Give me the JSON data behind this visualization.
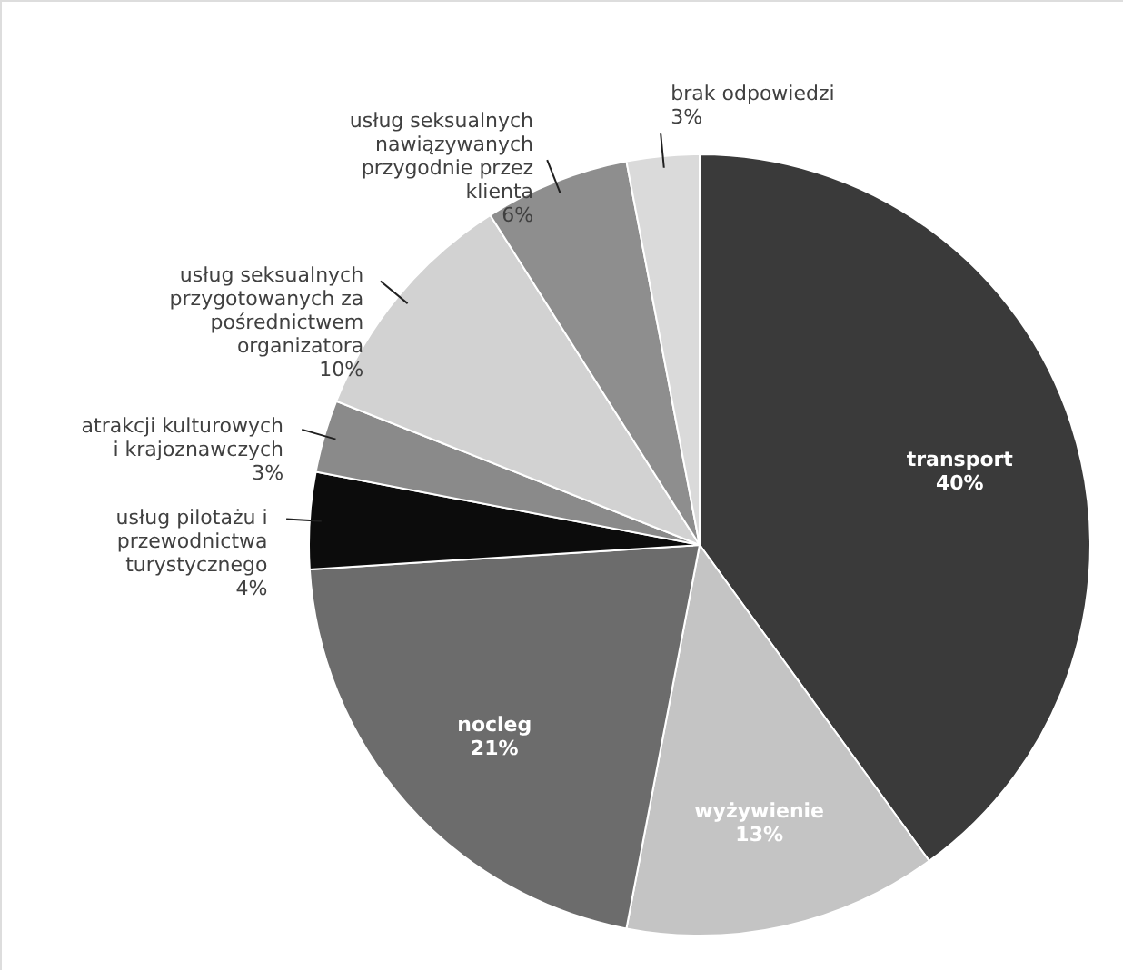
{
  "chart_data": {
    "type": "pie",
    "categories": [
      "transport",
      "wyżywienie",
      "nocleg",
      "usług pilotażu i przewodnictwa turystycznego",
      "atrakcji kulturowych i krajoznawczych",
      "usług seksualnych przygotowanych za pośrednictwem organizatora",
      "usług seksualnych nawiązywanych przygodnie przez klienta",
      "brak odpowiedzi"
    ],
    "values": [
      40,
      13,
      21,
      4,
      3,
      10,
      6,
      3
    ],
    "value_labels": [
      "40%",
      "13%",
      "21%",
      "4%",
      "3%",
      "10%",
      "6%",
      "3%"
    ],
    "colors": [
      "#3a3a3a",
      "#c4c4c4",
      "#6c6c6c",
      "#0c0c0c",
      "#8a8a8a",
      "#d2d2d2",
      "#8e8e8e",
      "#dadada"
    ]
  }
}
